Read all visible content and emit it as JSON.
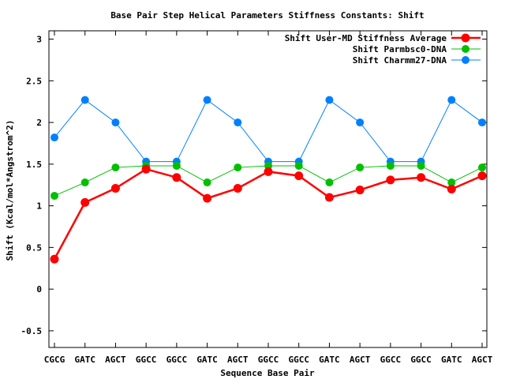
{
  "chart_data": {
    "type": "line",
    "title": "Base Pair Step Helical Parameters Stiffness Constants: Shift",
    "xlabel": "Sequence Base Pair",
    "ylabel": "Shift (Kcal/mol*Angstrom^2)",
    "categories": [
      "CGCG",
      "GATC",
      "AGCT",
      "GGCC",
      "GGCC",
      "GATC",
      "AGCT",
      "GGCC",
      "GGCC",
      "GATC",
      "AGCT",
      "GGCC",
      "GGCC",
      "GATC",
      "AGCT"
    ],
    "ylim": [
      -0.7,
      3.1
    ],
    "yticks": [
      -0.5,
      0,
      0.5,
      1,
      1.5,
      2,
      2.5,
      3
    ],
    "ytick_labels": [
      "-0.5",
      "0",
      "0.5",
      "1",
      "1.5",
      "2",
      "2.5",
      "3"
    ],
    "grid": false,
    "legend_position": "top-right",
    "series": [
      {
        "name": "Shift User-MD Stiffness Average",
        "color": "#ff0000",
        "values": [
          0.36,
          1.04,
          1.21,
          1.44,
          1.34,
          1.09,
          1.21,
          1.41,
          1.36,
          1.1,
          1.19,
          1.31,
          1.34,
          1.2,
          1.36
        ]
      },
      {
        "name": "Shift Parmbsc0-DNA",
        "color": "#00c000",
        "values": [
          1.12,
          1.28,
          1.46,
          1.48,
          1.48,
          1.28,
          1.46,
          1.48,
          1.48,
          1.28,
          1.46,
          1.48,
          1.48,
          1.28,
          1.46
        ]
      },
      {
        "name": "Shift Charmm27-DNA",
        "color": "#0080ff",
        "values": [
          1.82,
          2.27,
          2.0,
          1.53,
          1.53,
          2.27,
          2.0,
          1.53,
          1.53,
          2.27,
          2.0,
          1.53,
          1.53,
          2.27,
          2.0
        ]
      }
    ]
  }
}
